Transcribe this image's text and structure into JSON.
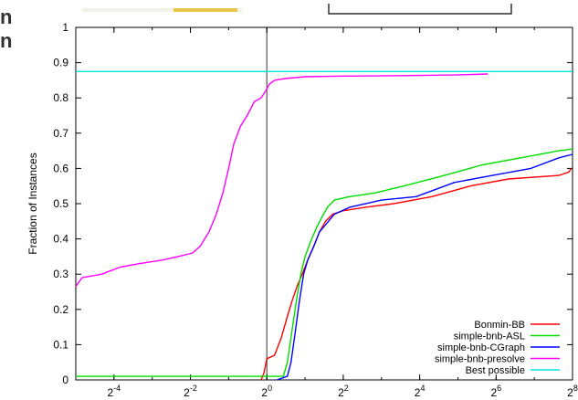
{
  "page_fragment": [
    "n",
    "n"
  ],
  "chart_data": {
    "type": "line",
    "ylabel": "Fraction of Instances",
    "xlabel": "",
    "x_scale": "log2",
    "xlim": [
      0.03125,
      256
    ],
    "ylim": [
      0,
      1
    ],
    "x_tick_exponents": [
      -4,
      -2,
      0,
      2,
      4,
      6,
      8
    ],
    "x_tick_base": "2",
    "y_ticks": [
      "0",
      "0.1",
      "0.2",
      "0.3",
      "0.4",
      "0.5",
      "0.6",
      "0.7",
      "0.8",
      "0.9",
      "1"
    ],
    "reference_line_x": 1,
    "legend_position": "bottom-right",
    "series": [
      {
        "name": "Bonmin-BB",
        "color": "#ff0000",
        "points": [
          [
            0.9,
            0.0
          ],
          [
            0.95,
            0.02
          ],
          [
            1.0,
            0.06
          ],
          [
            1.15,
            0.07
          ],
          [
            1.3,
            0.12
          ],
          [
            1.45,
            0.18
          ],
          [
            1.6,
            0.23
          ],
          [
            1.75,
            0.27
          ],
          [
            1.9,
            0.3
          ],
          [
            2.1,
            0.34
          ],
          [
            2.35,
            0.38
          ],
          [
            2.6,
            0.42
          ],
          [
            2.9,
            0.45
          ],
          [
            3.3,
            0.47
          ],
          [
            4.0,
            0.48
          ],
          [
            6.0,
            0.49
          ],
          [
            10,
            0.5
          ],
          [
            20,
            0.52
          ],
          [
            40,
            0.55
          ],
          [
            80,
            0.57
          ],
          [
            200,
            0.58
          ],
          [
            240,
            0.59
          ],
          [
            250,
            0.6
          ]
        ]
      },
      {
        "name": "simple-bnb-ASL",
        "color": "#00dd00",
        "points": [
          [
            0.03125,
            0.01
          ],
          [
            1.35,
            0.01
          ],
          [
            1.45,
            0.05
          ],
          [
            1.55,
            0.12
          ],
          [
            1.7,
            0.22
          ],
          [
            1.85,
            0.3
          ],
          [
            2.0,
            0.35
          ],
          [
            2.2,
            0.39
          ],
          [
            2.45,
            0.43
          ],
          [
            2.7,
            0.46
          ],
          [
            3.0,
            0.49
          ],
          [
            3.4,
            0.51
          ],
          [
            4.5,
            0.52
          ],
          [
            7,
            0.53
          ],
          [
            12,
            0.55
          ],
          [
            25,
            0.58
          ],
          [
            50,
            0.61
          ],
          [
            100,
            0.63
          ],
          [
            200,
            0.65
          ],
          [
            256,
            0.655
          ]
        ]
      },
      {
        "name": "simple-bnb-CGraph",
        "color": "#0000ff",
        "points": [
          [
            1.2,
            0.0
          ],
          [
            1.45,
            0.01
          ],
          [
            1.55,
            0.05
          ],
          [
            1.65,
            0.12
          ],
          [
            1.8,
            0.22
          ],
          [
            1.95,
            0.3
          ],
          [
            2.1,
            0.34
          ],
          [
            2.35,
            0.38
          ],
          [
            2.6,
            0.42
          ],
          [
            2.9,
            0.44
          ],
          [
            3.4,
            0.47
          ],
          [
            4.5,
            0.49
          ],
          [
            8,
            0.51
          ],
          [
            15,
            0.52
          ],
          [
            30,
            0.56
          ],
          [
            60,
            0.58
          ],
          [
            120,
            0.6
          ],
          [
            200,
            0.63
          ],
          [
            256,
            0.64
          ]
        ]
      },
      {
        "name": "simple-bnb-presolve",
        "color": "#ff00ff",
        "points": [
          [
            0.03125,
            0.265
          ],
          [
            0.035,
            0.29
          ],
          [
            0.05,
            0.3
          ],
          [
            0.07,
            0.32
          ],
          [
            0.1,
            0.33
          ],
          [
            0.15,
            0.34
          ],
          [
            0.2,
            0.35
          ],
          [
            0.26,
            0.36
          ],
          [
            0.3,
            0.38
          ],
          [
            0.35,
            0.42
          ],
          [
            0.4,
            0.47
          ],
          [
            0.45,
            0.53
          ],
          [
            0.5,
            0.6
          ],
          [
            0.55,
            0.67
          ],
          [
            0.62,
            0.72
          ],
          [
            0.7,
            0.75
          ],
          [
            0.8,
            0.79
          ],
          [
            0.9,
            0.8
          ],
          [
            0.98,
            0.82
          ],
          [
            1.05,
            0.84
          ],
          [
            1.15,
            0.85
          ],
          [
            1.4,
            0.855
          ],
          [
            2.0,
            0.86
          ],
          [
            4.0,
            0.862
          ],
          [
            10,
            0.863
          ],
          [
            30,
            0.865
          ],
          [
            55,
            0.868
          ]
        ]
      },
      {
        "name": "Best possible",
        "color": "#00e5e5",
        "points": [
          [
            0.03125,
            0.875
          ],
          [
            256,
            0.875
          ]
        ]
      }
    ]
  }
}
